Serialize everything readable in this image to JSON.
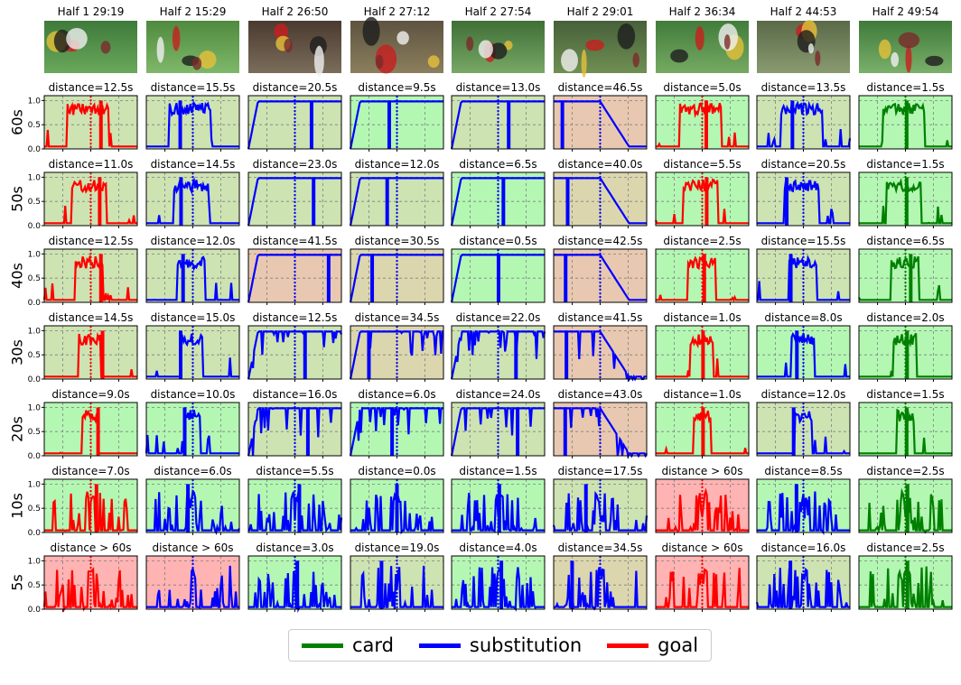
{
  "columns": [
    {
      "title": "Half 1 29:19",
      "label": "goal"
    },
    {
      "title": "Half 2 15:29",
      "label": "substitution"
    },
    {
      "title": "Half 2 26:50",
      "label": "substitution"
    },
    {
      "title": "Half 2 27:12",
      "label": "substitution"
    },
    {
      "title": "Half 2 27:54",
      "label": "substitution"
    },
    {
      "title": "Half 2 29:01",
      "label": "substitution"
    },
    {
      "title": "Half 2 36:34",
      "label": "goal"
    },
    {
      "title": "Half 2 44:53",
      "label": "substitution"
    },
    {
      "title": "Half 2 49:54",
      "label": "card"
    }
  ],
  "rows": [
    "60s",
    "50s",
    "40s",
    "30s",
    "20s",
    "10s",
    "5s"
  ],
  "distances": [
    [
      "distance=12.5s",
      "distance=15.5s",
      "distance=20.5s",
      "distance=9.5s",
      "distance=13.0s",
      "distance=46.5s",
      "distance=5.0s",
      "distance=13.5s",
      "distance=1.5s"
    ],
    [
      "distance=11.0s",
      "distance=14.5s",
      "distance=23.0s",
      "distance=12.0s",
      "distance=6.5s",
      "distance=40.0s",
      "distance=5.5s",
      "distance=20.5s",
      "distance=1.5s"
    ],
    [
      "distance=12.5s",
      "distance=12.0s",
      "distance=41.5s",
      "distance=30.5s",
      "distance=0.5s",
      "distance=42.5s",
      "distance=2.5s",
      "distance=15.5s",
      "distance=6.5s"
    ],
    [
      "distance=14.5s",
      "distance=15.0s",
      "distance=12.5s",
      "distance=34.5s",
      "distance=22.0s",
      "distance=41.5s",
      "distance=1.0s",
      "distance=8.0s",
      "distance=2.0s"
    ],
    [
      "distance=9.0s",
      "distance=10.0s",
      "distance=16.0s",
      "distance=6.0s",
      "distance=24.0s",
      "distance=43.0s",
      "distance=1.0s",
      "distance=12.0s",
      "distance=1.5s"
    ],
    [
      "distance=7.0s",
      "distance=6.0s",
      "distance=5.5s",
      "distance=0.0s",
      "distance=1.5s",
      "distance=17.5s",
      "distance > 60s",
      "distance=8.5s",
      "distance=2.5s"
    ],
    [
      "distance > 60s",
      "distance > 60s",
      "distance=3.0s",
      "distance=19.0s",
      "distance=4.0s",
      "distance=34.5s",
      "distance > 60s",
      "distance=16.0s",
      "distance=2.5s"
    ]
  ],
  "colors": {
    "card": "#008000",
    "substitution": "#0000ff",
    "goal": "#ff0000"
  },
  "chart_data": {
    "type": "line",
    "ylim": [
      0,
      1.1
    ],
    "yticks": [
      "0.0",
      "0.5",
      "1.0"
    ],
    "grid": true,
    "legend": {
      "placement": "bottom-center",
      "entries": [
        {
          "name": "card"
        },
        {
          "name": "substitution"
        },
        {
          "name": "goal"
        }
      ]
    }
  }
}
